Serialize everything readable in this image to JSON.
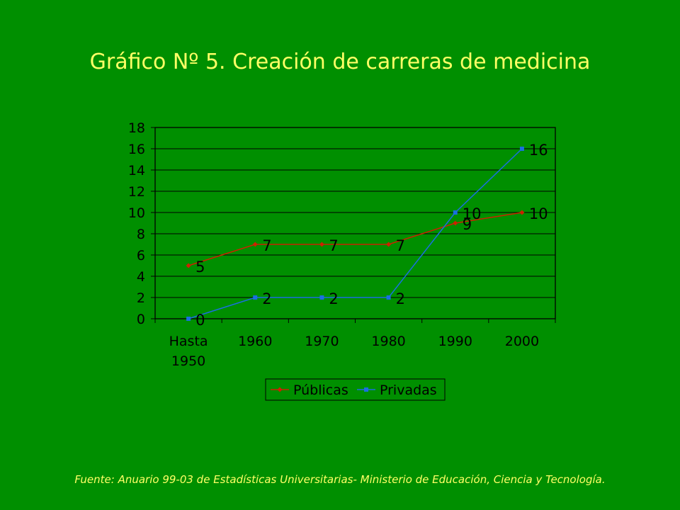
{
  "slide": {
    "title": "Gráfico Nº 5. Creación de carreras de medicina",
    "source": "Fuente: Anuario 99-03 de Estadísticas Universitarias- Ministerio de Educación, Ciencia y Tecnología."
  },
  "chart_data": {
    "type": "line",
    "title": "",
    "xlabel": "",
    "ylabel": "",
    "categories": [
      [
        "Hasta",
        "1950"
      ],
      [
        "1960"
      ],
      [
        "1970"
      ],
      [
        "1980"
      ],
      [
        "1990"
      ],
      [
        "2000"
      ]
    ],
    "ylim": [
      0,
      18
    ],
    "yticks": [
      "0",
      "2",
      "4",
      "6",
      "8",
      "10",
      "12",
      "14",
      "16",
      "18"
    ],
    "grid": true,
    "legend_position": "bottom",
    "series": [
      {
        "name": "Públicas",
        "values": [
          5,
          7,
          7,
          7,
          9,
          10
        ],
        "labels": [
          "5",
          "7",
          "7",
          "7",
          "9",
          "10"
        ],
        "color": "#cc2200"
      },
      {
        "name": "Privadas",
        "values": [
          0,
          2,
          2,
          2,
          10,
          16
        ],
        "labels": [
          "0",
          "2",
          "2",
          "2",
          "10",
          "16"
        ],
        "color": "#1a6fe0"
      }
    ],
    "plot_background": "#008f00",
    "gridline_color": "#000000"
  }
}
